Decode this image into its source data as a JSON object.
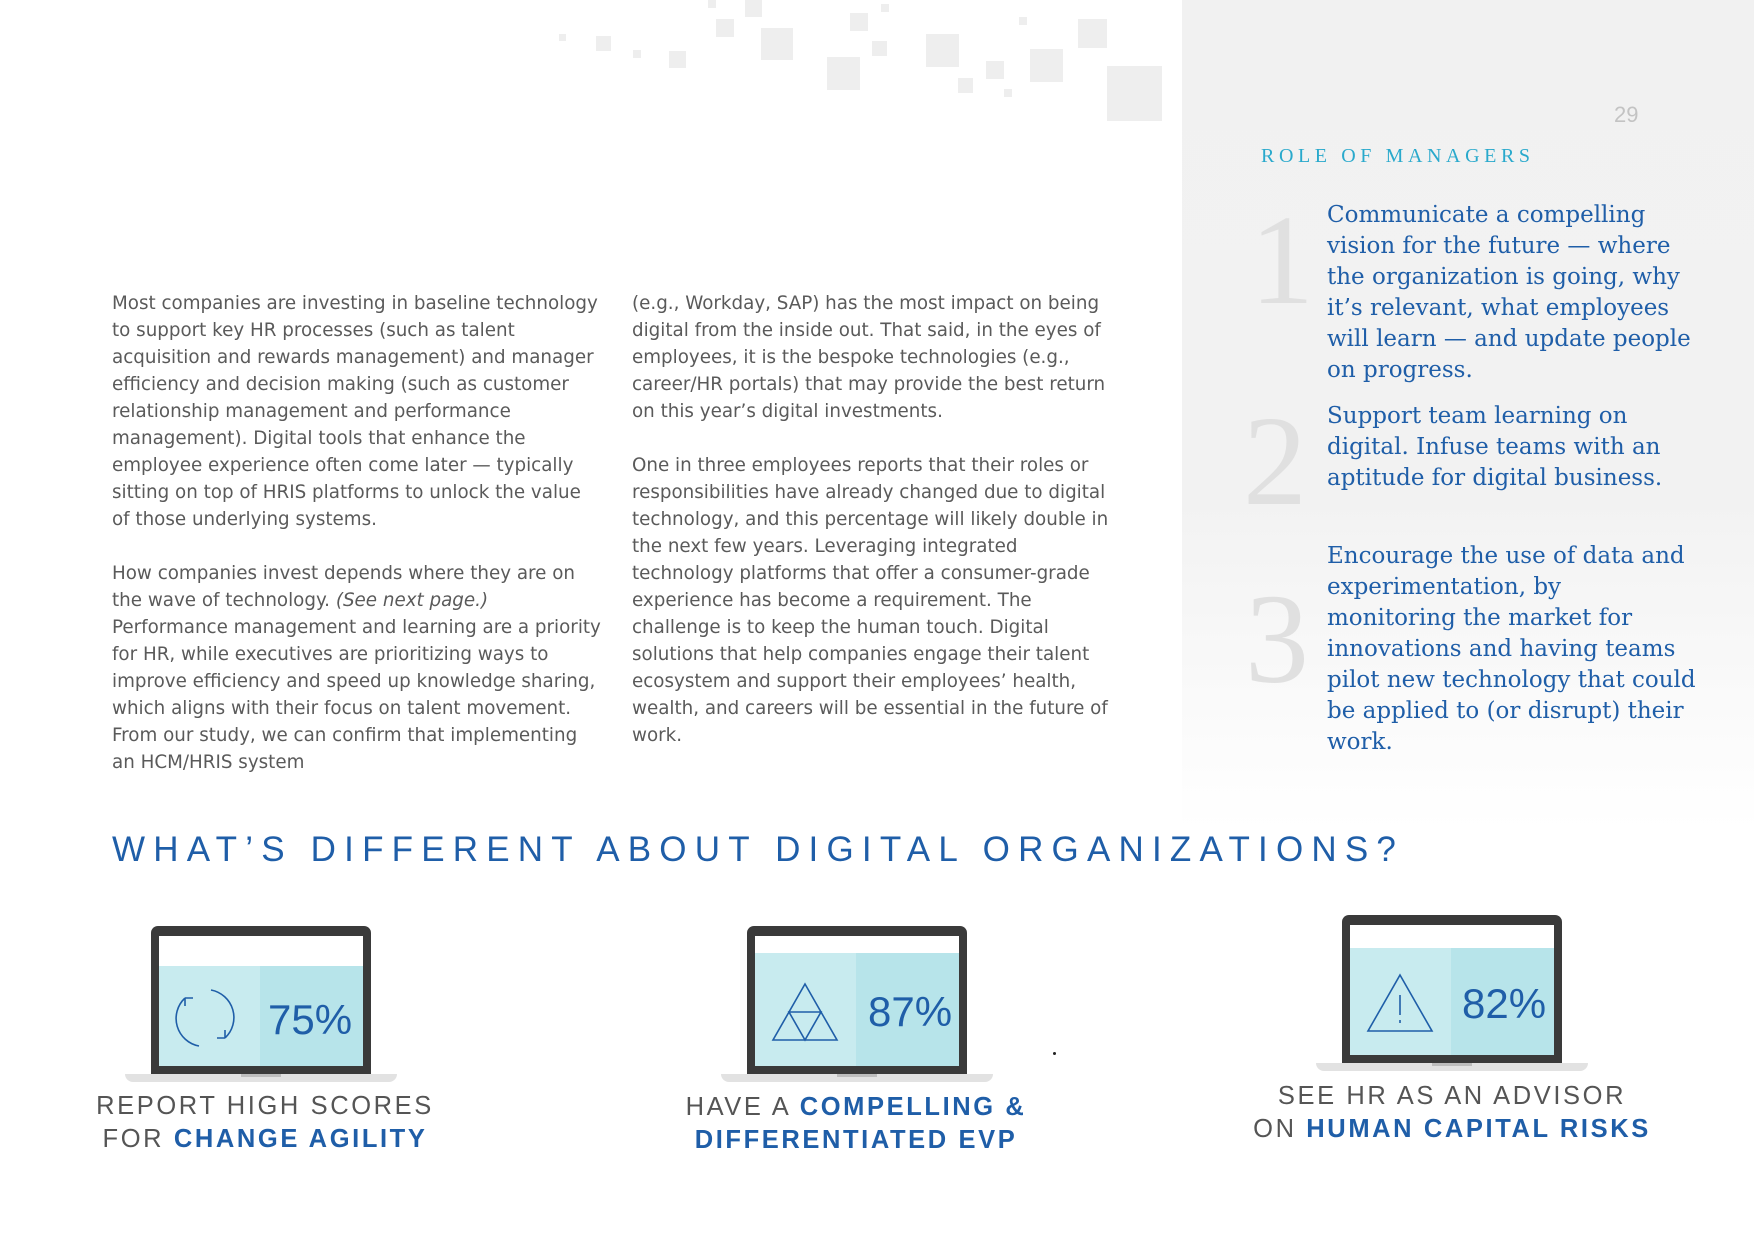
{
  "page_number": "29",
  "sidebar": {
    "title": "ROLE OF MANAGERS",
    "roles": [
      {
        "number": "1",
        "text": "Communicate a compelling vision for the future — where the organization is going, why it’s relevant, what employees will learn — and update people on progress."
      },
      {
        "number": "2",
        "text": "Support team learning on digital. Infuse teams with an aptitude for digital business."
      },
      {
        "number": "3",
        "text": "Encourage the use of data and experimentation, by monitoring the market for innovations and having teams pilot new technology that could be applied to (or disrupt) their work."
      }
    ]
  },
  "body": {
    "col1_p1": "Most companies are investing in baseline technology to support key HR processes (such as talent acquisition and rewards management) and manager efficiency and decision making (such as customer relationship management and performance management). Digital tools that enhance the employee experience often come later — typically sitting on top of HRIS platforms to unlock the value of those underlying systems.",
    "col1_p2_a": "How companies invest depends where they are on the wave of technology. ",
    "col1_p2_note": "(See next page.)",
    "col1_p2_b": " Performance management and learning are a priority for HR, while executives are prioritizing ways to improve efficiency and speed up knowledge sharing, which aligns with their focus on talent movement. From our study, we can confirm that implementing an HCM/HRIS system",
    "col2_p1": "(e.g., Workday, SAP) has the most impact on being digital from the inside out. That said, in the eyes of employees, it is the bespoke technologies (e.g., career/HR portals) that may provide the best return on this year’s digital investments.",
    "col2_p2": "One in three employees reports that their roles or responsibilities have already changed due to digital technology, and this percentage will likely double in the next few years. Leveraging integrated technology platforms that offer a consumer-grade experience has become a requirement. The challenge is to keep the human touch. Digital solutions that help companies engage their talent ecosystem and support their employees’ health, wealth, and careers will be essential in the future of work."
  },
  "section_title": "WHAT’S DIFFERENT ABOUT DIGITAL ORGANIZATIONS?",
  "stats": [
    {
      "value": "75%",
      "icon": "refresh-icon",
      "caption_line1": "REPORT HIGH SCORES",
      "caption_plain2": "FOR ",
      "caption_hl2": "CHANGE AGILITY"
    },
    {
      "value": "87%",
      "icon": "triangle-pyramid-icon",
      "caption_plain1": "HAVE A ",
      "caption_hl1": "COMPELLING &",
      "caption_hl2": "DIFFERENTIATED EVP"
    },
    {
      "value": "82%",
      "icon": "warning-icon",
      "caption_line1": "SEE HR AS AN ADVISOR",
      "caption_plain2": "ON ",
      "caption_hl2": "HUMAN CAPITAL RISKS"
    }
  ],
  "colors": {
    "accent_blue": "#1f5ea8",
    "teal": "#29a9cc",
    "screen_light": "#c8ebef",
    "screen_dark": "#b7e4ea"
  }
}
